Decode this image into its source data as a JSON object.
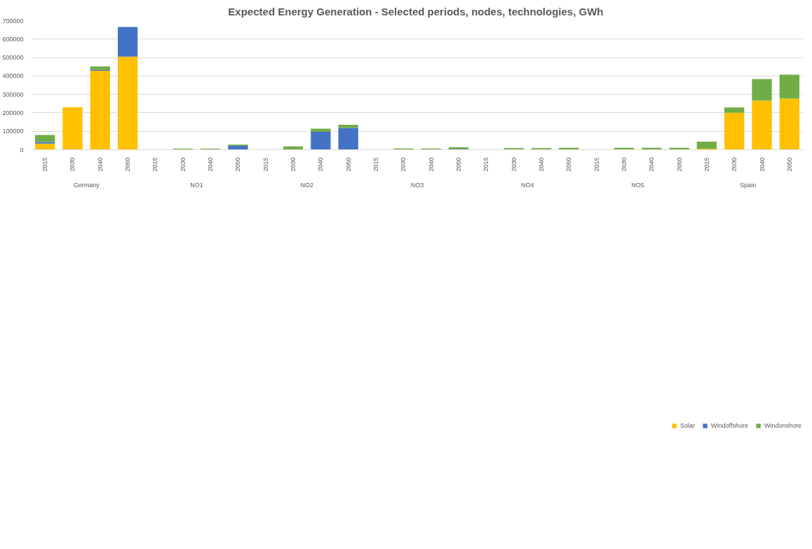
{
  "chart_data": {
    "type": "bar",
    "title": "Expected Energy Generation - Selected  periods, nodes, technologies, GWh",
    "stacked": true,
    "categories": [
      "2015",
      "2030",
      "2040",
      "2050",
      "2015",
      "2030",
      "2040",
      "2050",
      "2015",
      "2030",
      "2040",
      "2050",
      "2015",
      "2030",
      "2040",
      "2050",
      "2015",
      "2030",
      "2040",
      "2050",
      "2015",
      "2030",
      "2040",
      "2050",
      "2015",
      "2030",
      "2040",
      "2050"
    ],
    "annotations": [
      "Germany",
      "NO1",
      "NO2",
      "NO3",
      "NO4",
      "NO5",
      "Spain"
    ],
    "series": [
      {
        "name": "Solar",
        "color": "#ffc000",
        "values": [
          33000,
          230000,
          428000,
          505000,
          0,
          0,
          0,
          0,
          0,
          0,
          0,
          0,
          0,
          0,
          0,
          0,
          0,
          0,
          0,
          0,
          0,
          0,
          0,
          0,
          6000,
          201000,
          266000,
          278000
        ]
      },
      {
        "name": "Windoffshore",
        "color": "#4472c4",
        "values": [
          9000,
          0,
          5000,
          161000,
          0,
          0,
          0,
          21000,
          0,
          0,
          97000,
          118000,
          0,
          0,
          0,
          5000,
          0,
          0,
          0,
          0,
          0,
          0,
          0,
          0,
          0,
          0,
          0,
          0
        ]
      },
      {
        "name": "Windonshore",
        "color": "#70ad47",
        "values": [
          38000,
          0,
          19000,
          0,
          0,
          6000,
          6000,
          7000,
          0,
          18000,
          17000,
          17000,
          0,
          7000,
          7000,
          8000,
          0,
          9000,
          9000,
          10000,
          0,
          10000,
          10000,
          10000,
          38000,
          28000,
          117000,
          129000
        ]
      }
    ],
    "ylim": [
      0,
      700000
    ],
    "yticks": [
      0,
      100000,
      200000,
      300000,
      400000,
      500000,
      600000,
      700000
    ],
    "grid": "y",
    "legend": "bottom"
  }
}
